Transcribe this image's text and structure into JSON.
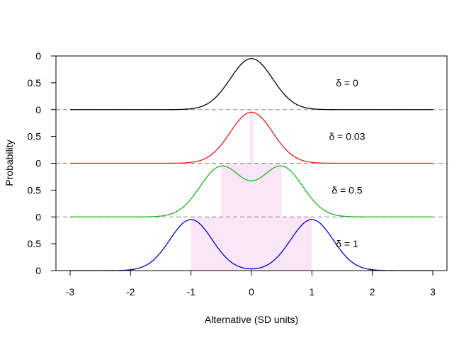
{
  "chart_data": {
    "type": "line",
    "title": "",
    "xlabel": "Alternative (SD units)",
    "ylabel": "Probability",
    "xlim": [
      -3,
      3
    ],
    "x_ticks": [
      "-3",
      "-2",
      "-1",
      "0",
      "1",
      "2",
      "3"
    ],
    "y_tick_labels": [
      "0",
      "0.5",
      "0",
      "0.5",
      "0",
      "0.5",
      "0",
      "0.5",
      "0"
    ],
    "series": [
      {
        "name": "δ = 0",
        "delta": 0,
        "color": "#000000",
        "peak": 0.95,
        "shaded_interval": [
          0,
          0
        ]
      },
      {
        "name": "δ = 0.03",
        "delta": 0.03,
        "color": "#e41a1c",
        "peak": 0.95,
        "shaded_interval": [
          -0.03,
          0.03
        ]
      },
      {
        "name": "δ = 0.5",
        "delta": 0.5,
        "color": "#1fb31f",
        "peak": 0.95,
        "shaded_interval": [
          -0.5,
          0.5
        ]
      },
      {
        "name": "δ = 1",
        "delta": 1,
        "color": "#0000d0",
        "peak": 0.95,
        "shaded_interval": [
          -1,
          1
        ]
      }
    ],
    "shade_color": "#fbe6f8",
    "baseline_style": "dashed gray",
    "grid": false,
    "legend": "inline labels right of each curve"
  }
}
